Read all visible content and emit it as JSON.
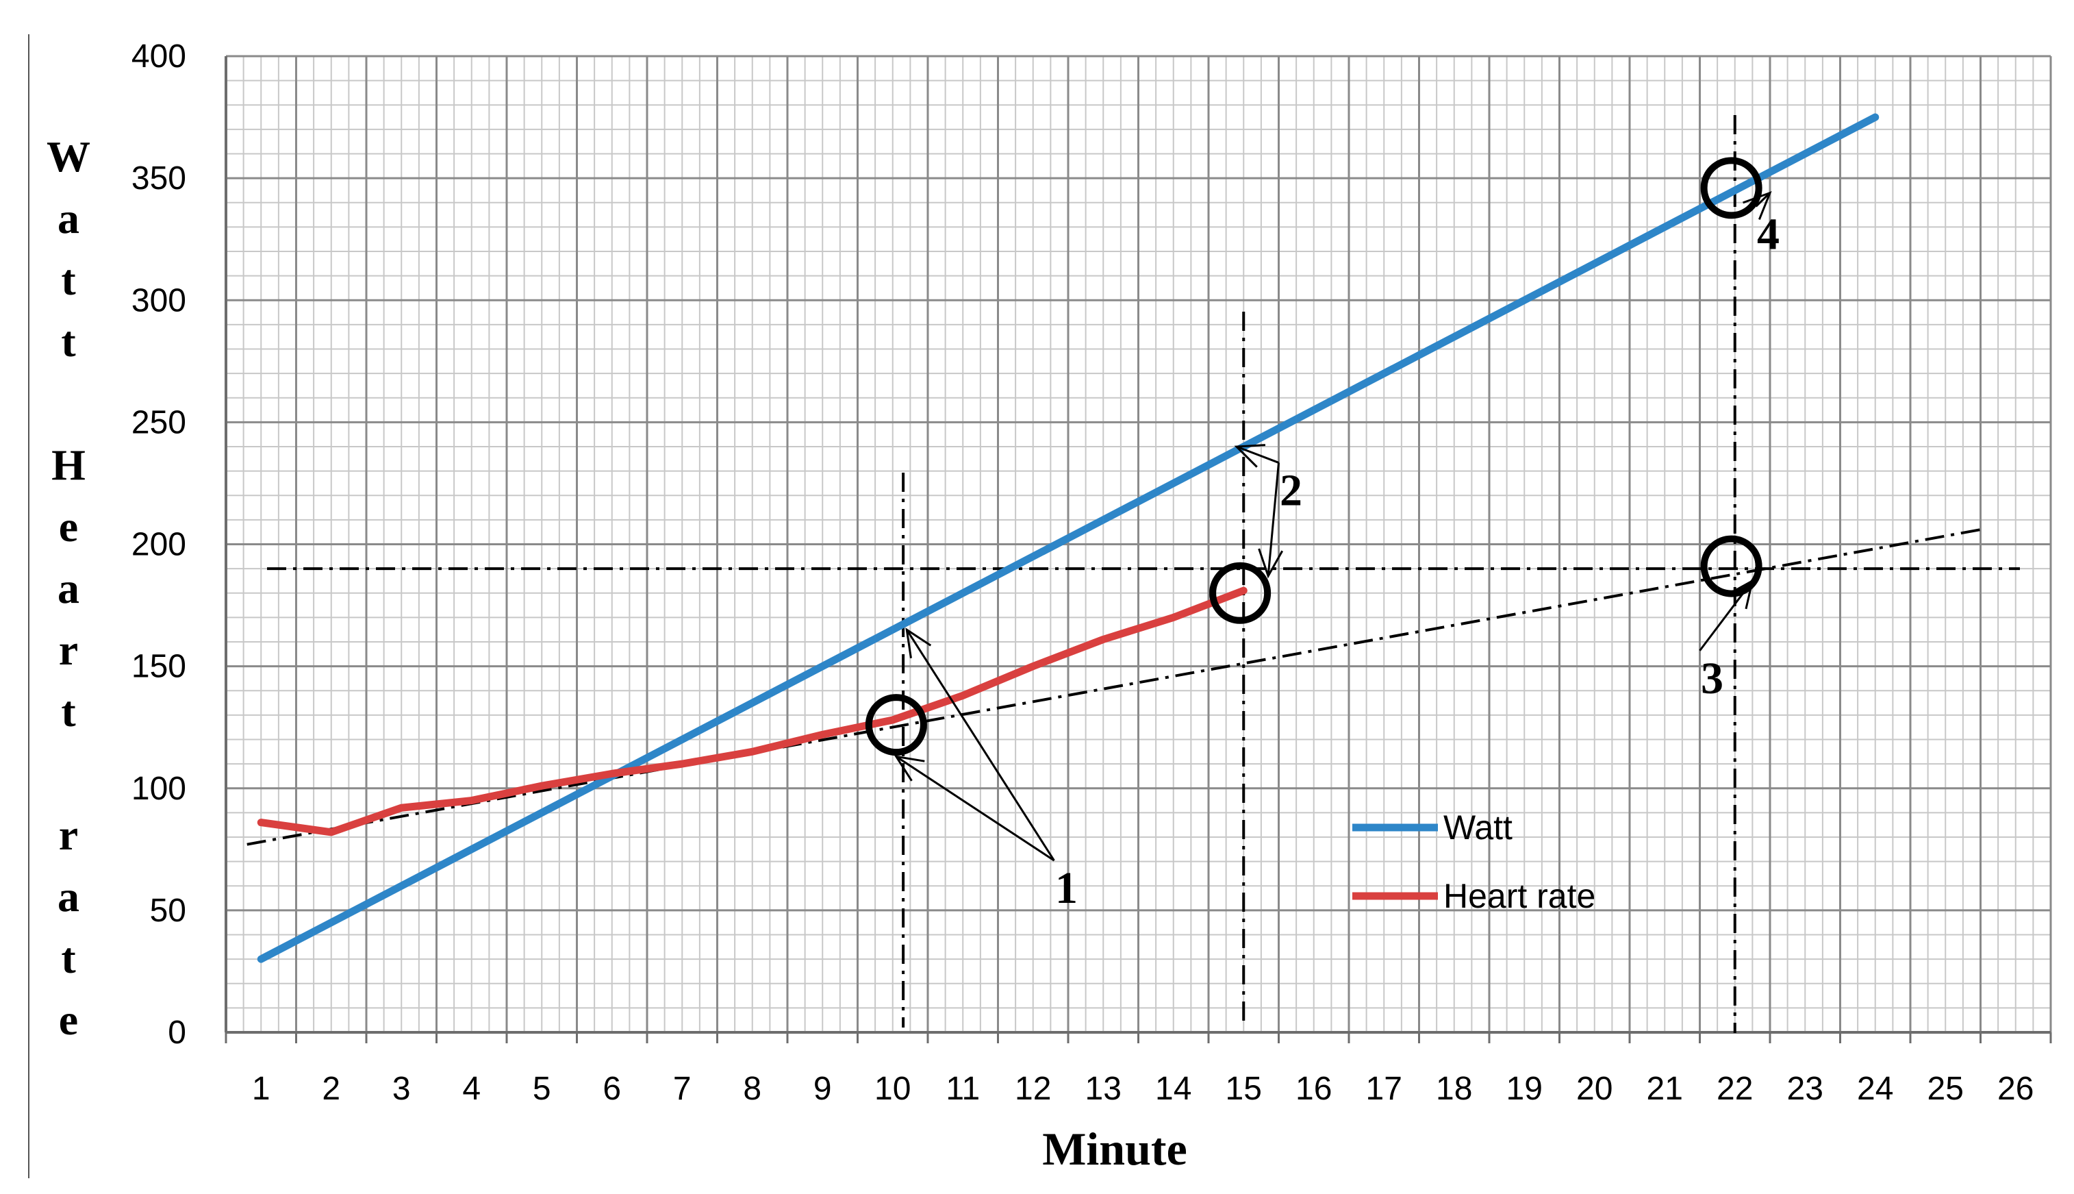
{
  "chart_data": {
    "type": "line",
    "title": "",
    "xlabel": "Minute",
    "ylabel": "Watt Heart rate",
    "x_ticks": [
      "1",
      "2",
      "3",
      "4",
      "5",
      "6",
      "7",
      "8",
      "9",
      "10",
      "11",
      "12",
      "13",
      "14",
      "15",
      "16",
      "17",
      "18",
      "19",
      "20",
      "21",
      "22",
      "23",
      "24",
      "25",
      "26"
    ],
    "y_ticks": [
      0,
      50,
      100,
      150,
      200,
      250,
      300,
      350,
      400
    ],
    "ylim": [
      0,
      400
    ],
    "xlim": [
      0.5,
      26.5
    ],
    "grid": true,
    "minor_grid": true,
    "legend_position": "bottom-right-inside",
    "series": [
      {
        "name": "Watt",
        "color": "#2E86C8",
        "x": [
          1,
          24
        ],
        "values": [
          30,
          375
        ]
      },
      {
        "name": "Heart rate",
        "color": "#D9403F",
        "x": [
          1,
          2,
          3,
          4,
          5,
          6,
          7,
          8,
          9,
          10,
          11,
          12,
          13,
          14,
          15
        ],
        "values": [
          86,
          82,
          92,
          95,
          101,
          106,
          110,
          115,
          122,
          128,
          138,
          150,
          161,
          170,
          181
        ]
      }
    ],
    "reference_lines": {
      "trend": {
        "color": "#000000",
        "x": [
          0.8,
          25.5
        ],
        "values": [
          77,
          206
        ]
      },
      "horizontal_y": 190,
      "vertical_x": [
        10.15,
        15,
        22
      ]
    },
    "markers": [
      {
        "x": 10.05,
        "y": 126
      },
      {
        "x": 14.95,
        "y": 180
      },
      {
        "x": 21.95,
        "y": 191
      },
      {
        "x": 21.95,
        "y": 346
      }
    ],
    "annotations": [
      {
        "text": "1",
        "x": 12.3,
        "y": 62,
        "targets": [
          [
            10.05,
            113
          ],
          [
            10.2,
            165
          ]
        ]
      },
      {
        "text": "2",
        "x": 15.5,
        "y": 225,
        "targets": [
          [
            14.9,
            240
          ],
          [
            15.35,
            187
          ]
        ]
      },
      {
        "text": "3",
        "x": 21.5,
        "y": 148,
        "targets": [
          [
            22.25,
            185
          ]
        ]
      },
      {
        "text": "4",
        "x": 22.3,
        "y": 330,
        "targets": [
          [
            22.5,
            344
          ]
        ]
      }
    ]
  }
}
